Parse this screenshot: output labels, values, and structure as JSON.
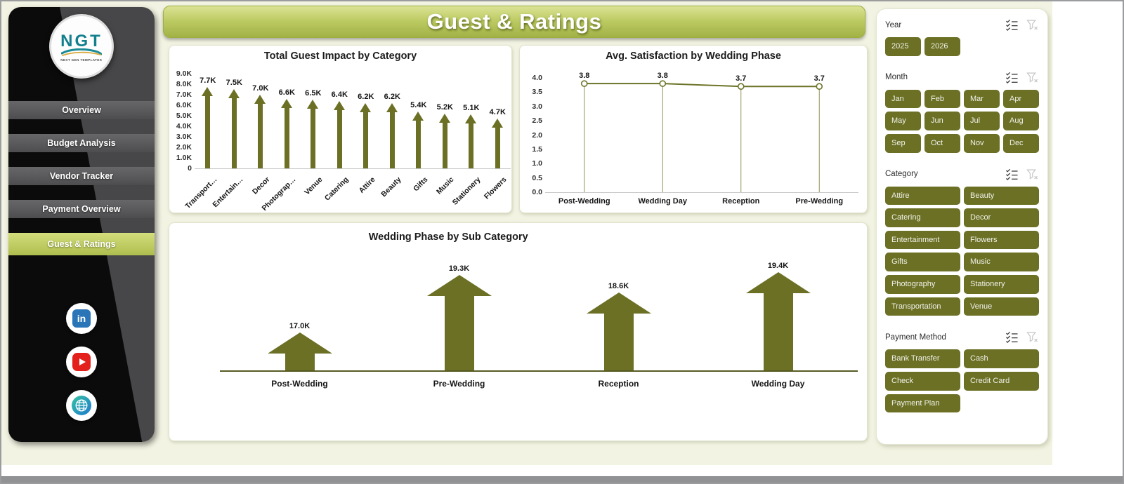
{
  "header": {
    "title": "Guest & Ratings"
  },
  "sidebar": {
    "logo": {
      "text": "NGT",
      "caption": "NEXT GEN TEMPLATES"
    },
    "nav_items": [
      {
        "label": "Overview",
        "active": false
      },
      {
        "label": "Budget Analysis",
        "active": false
      },
      {
        "label": "Vendor Tracker",
        "active": false
      },
      {
        "label": "Payment Overview",
        "active": false
      },
      {
        "label": "Guest & Ratings",
        "active": true
      }
    ],
    "social": [
      {
        "id": "linkedin",
        "glyph": "in"
      },
      {
        "id": "youtube"
      },
      {
        "id": "website"
      }
    ]
  },
  "slicers": {
    "header_icons": [
      "select-all-icon",
      "clear-filter-icon"
    ],
    "sections": [
      {
        "id": "year",
        "label": "Year",
        "cols": 4,
        "items": [
          "2025",
          "2026"
        ]
      },
      {
        "id": "month",
        "label": "Month",
        "cols": 4,
        "items": [
          "Jan",
          "Feb",
          "Mar",
          "Apr",
          "May",
          "Jun",
          "Jul",
          "Aug",
          "Sep",
          "Oct",
          "Nov",
          "Dec"
        ]
      },
      {
        "id": "category",
        "label": "Category",
        "cols": 2,
        "items": [
          "Attire",
          "Beauty",
          "Catering",
          "Decor",
          "Entertainment",
          "Flowers",
          "Gifts",
          "Music",
          "Photography",
          "Stationery",
          "Transportation",
          "Venue"
        ]
      },
      {
        "id": "payment",
        "label": "Payment Method",
        "cols": 2,
        "items": [
          "Bank Transfer",
          "Cash",
          "Check",
          "Credit Card",
          "Payment Plan"
        ]
      }
    ]
  },
  "chart_data": [
    {
      "id": "impact_by_category",
      "type": "bar",
      "variant": "arrow-bars",
      "title": "Total Guest Impact by Category",
      "categories": [
        "Transport…",
        "Entertain…",
        "Decor",
        "Photograp…",
        "Venue",
        "Catering",
        "Attire",
        "Beauty",
        "Gifts",
        "Music",
        "Stationery",
        "Flowers"
      ],
      "values": [
        7700,
        7500,
        7000,
        6600,
        6500,
        6400,
        6200,
        6200,
        5400,
        5200,
        5100,
        4700
      ],
      "labels": [
        "7.7K",
        "7.5K",
        "7.0K",
        "6.6K",
        "6.5K",
        "6.4K",
        "6.2K",
        "6.2K",
        "5.4K",
        "5.2K",
        "5.1K",
        "4.7K"
      ],
      "ylim": [
        0,
        9000
      ],
      "yticks": [
        "9.0K",
        "8.0K",
        "7.0K",
        "6.0K",
        "5.0K",
        "4.0K",
        "3.0K",
        "2.0K",
        "1.0K",
        "0"
      ],
      "grid": false,
      "legend": "none"
    },
    {
      "id": "satisfaction_by_phase",
      "type": "line",
      "title": "Avg. Satisfaction by Wedding Phase",
      "categories": [
        "Post-Wedding",
        "Wedding Day",
        "Reception",
        "Pre-Wedding"
      ],
      "values": [
        3.8,
        3.8,
        3.7,
        3.7
      ],
      "labels": [
        "3.8",
        "3.8",
        "3.7",
        "3.7"
      ],
      "ylim": [
        0,
        4
      ],
      "yticks": [
        "4.0",
        "3.5",
        "3.0",
        "2.5",
        "2.0",
        "1.5",
        "1.0",
        "0.5",
        "0.0"
      ],
      "markers": "circle-open",
      "drop_lines": true,
      "grid": false,
      "legend": "none"
    },
    {
      "id": "phase_by_subcategory",
      "type": "bar",
      "variant": "arrow-bars",
      "title": "Wedding Phase by Sub Category",
      "categories": [
        "Post-Wedding",
        "Pre-Wedding",
        "Reception",
        "Wedding Day"
      ],
      "values": [
        17000,
        19300,
        18600,
        19400
      ],
      "labels": [
        "17.0K",
        "19.3K",
        "18.6K",
        "19.4K"
      ],
      "ylim": [
        15500,
        19400
      ],
      "grid": false,
      "legend": "none"
    }
  ],
  "colors": {
    "olive": "#6B7024",
    "cream_background": "#F2F3E2",
    "banner_top": "#DBE394",
    "banner_bottom": "#A2B246",
    "active_nav_top": "#D3DE7C",
    "active_nav_bottom": "#AEBD4E",
    "nav_gray": "#59595B",
    "sidebar_black": "#0B0B0B",
    "sidebar_gray": "#474749",
    "linkedin_blue": "#2A74B8",
    "youtube_red": "#E3201B",
    "logo_teal": "#14808E",
    "line_chart": "#6D7428",
    "drop_line": "#8F9456",
    "axis_line": "#C9C9C9"
  }
}
